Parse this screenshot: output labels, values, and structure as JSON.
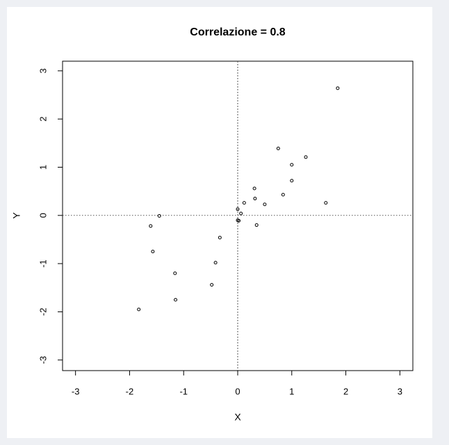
{
  "chart_data": {
    "type": "scatter",
    "title": "Correlazione = 0.8",
    "x_label": "X",
    "y_label": "Y",
    "x": [
      1.85,
      0.75,
      1.26,
      1.0,
      1.0,
      0.31,
      0.32,
      0.12,
      0.5,
      0.84,
      1.63,
      0.0,
      0.06,
      0.0,
      0.02,
      0.35,
      -1.45,
      -1.61,
      -1.57,
      -0.33,
      -0.41,
      -0.48,
      -1.16,
      -1.15,
      -1.83
    ],
    "values": [
      2.64,
      1.39,
      1.21,
      1.05,
      0.72,
      0.56,
      0.35,
      0.26,
      0.23,
      0.43,
      0.26,
      0.13,
      0.04,
      -0.1,
      -0.11,
      -0.2,
      -0.01,
      -0.22,
      -0.75,
      -0.46,
      -0.98,
      -1.44,
      -1.2,
      -1.75,
      -1.95
    ],
    "color": "#000000",
    "xlim": [
      -3.24,
      3.24
    ],
    "ylim": [
      -3.22,
      3.2
    ],
    "xticks": [
      -3,
      -2,
      -1,
      0,
      1,
      2,
      3
    ],
    "yticks": [
      -3,
      -2,
      -1,
      0,
      1,
      2,
      3
    ],
    "hlines": [
      0
    ],
    "vlines": [
      0
    ]
  }
}
